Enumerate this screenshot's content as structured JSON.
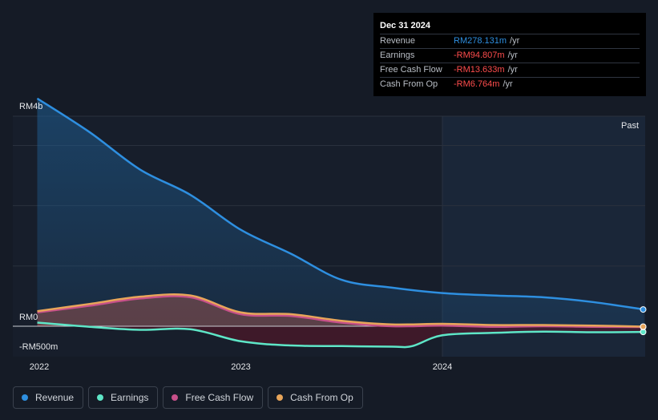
{
  "chart_data": {
    "type": "area",
    "ylim": [
      -500,
      4000
    ],
    "x_ticks": [
      {
        "label": "2022",
        "x": 2022.0
      },
      {
        "label": "2023",
        "x": 2023.0
      },
      {
        "label": "2024",
        "x": 2024.0
      }
    ],
    "y_ticks": [
      {
        "label": "RM4b",
        "value": 4000
      },
      {
        "label": "RM0",
        "value": 0
      },
      {
        "label": "-RM500m",
        "value": -500
      }
    ],
    "past_label": "Past",
    "series": [
      {
        "name": "Revenue",
        "color": "#2e8fe0",
        "x": [
          2021.99,
          2022.25,
          2022.5,
          2022.75,
          2023.0,
          2023.25,
          2023.5,
          2023.75,
          2024.0,
          2024.25,
          2024.5,
          2024.75,
          2025.0
        ],
        "values": [
          3780,
          3220,
          2600,
          2180,
          1600,
          1200,
          770,
          640,
          550,
          510,
          480,
          400,
          278.131
        ]
      },
      {
        "name": "Earnings",
        "color": "#5ee6c7",
        "x": [
          2021.99,
          2022.25,
          2022.5,
          2022.75,
          2023.0,
          2023.25,
          2023.5,
          2023.75,
          2023.85,
          2024.0,
          2024.25,
          2024.5,
          2024.75,
          2025.0
        ],
        "values": [
          60,
          -10,
          -60,
          -50,
          -250,
          -320,
          -330,
          -340,
          -330,
          -150,
          -110,
          -90,
          -100,
          -94.807
        ]
      },
      {
        "name": "Free Cash Flow",
        "color": "#c7508a",
        "x": [
          2021.99,
          2022.25,
          2022.5,
          2022.75,
          2023.0,
          2023.25,
          2023.5,
          2023.75,
          2024.0,
          2024.25,
          2024.5,
          2024.75,
          2025.0
        ],
        "values": [
          230,
          340,
          460,
          480,
          200,
          170,
          60,
          0,
          10,
          -10,
          0,
          -10,
          -13.633
        ]
      },
      {
        "name": "Cash From Op",
        "color": "#e8a55a",
        "x": [
          2021.99,
          2022.25,
          2022.5,
          2022.75,
          2023.0,
          2023.25,
          2023.5,
          2023.75,
          2024.0,
          2024.25,
          2024.5,
          2024.75,
          2025.0
        ],
        "values": [
          250,
          370,
          490,
          510,
          230,
          200,
          90,
          30,
          40,
          20,
          20,
          10,
          -6.764
        ]
      }
    ]
  },
  "tooltip": {
    "date": "Dec 31 2024",
    "rows": [
      {
        "label": "Revenue",
        "value": "RM278.131m",
        "unit": "/yr",
        "color": "#2e8fe0"
      },
      {
        "label": "Earnings",
        "value": "-RM94.807m",
        "unit": "/yr",
        "color": "#ff4d4d"
      },
      {
        "label": "Free Cash Flow",
        "value": "-RM13.633m",
        "unit": "/yr",
        "color": "#ff4d4d"
      },
      {
        "label": "Cash From Op",
        "value": "-RM6.764m",
        "unit": "/yr",
        "color": "#ff4d4d"
      }
    ]
  },
  "legend": [
    {
      "label": "Revenue",
      "color": "#2e8fe0"
    },
    {
      "label": "Earnings",
      "color": "#5ee6c7"
    },
    {
      "label": "Free Cash Flow",
      "color": "#c7508a"
    },
    {
      "label": "Cash From Op",
      "color": "#e8a55a"
    }
  ]
}
